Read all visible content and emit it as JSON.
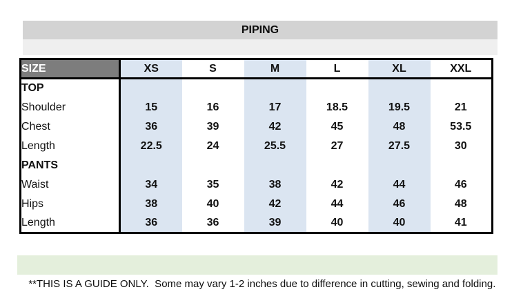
{
  "title": "PIPING",
  "footnote": "**THIS IS A GUIDE ONLY.  Some may vary 1-2 inches due to difference in cutting, sewing and folding.",
  "chart_data": {
    "type": "table",
    "title": "PIPING",
    "corner_header": "SIZE",
    "columns": [
      "XS",
      "S",
      "M",
      "L",
      "XL",
      "XXL"
    ],
    "shaded_columns": [
      "XS",
      "M",
      "XL"
    ],
    "rows": [
      {
        "label": "TOP",
        "is_section": true,
        "values": [
          "",
          "",
          "",
          "",
          "",
          ""
        ]
      },
      {
        "label": "Shoulder",
        "is_section": false,
        "values": [
          "15",
          "16",
          "17",
          "18.5",
          "19.5",
          "21"
        ]
      },
      {
        "label": "Chest",
        "is_section": false,
        "values": [
          "36",
          "39",
          "42",
          "45",
          "48",
          "53.5"
        ]
      },
      {
        "label": "Length",
        "is_section": false,
        "values": [
          "22.5",
          "24",
          "25.5",
          "27",
          "27.5",
          "30"
        ]
      },
      {
        "label": "PANTS",
        "is_section": true,
        "values": [
          "",
          "",
          "",
          "",
          "",
          ""
        ]
      },
      {
        "label": "Waist",
        "is_section": false,
        "values": [
          "34",
          "35",
          "38",
          "42",
          "44",
          "46"
        ]
      },
      {
        "label": "Hips",
        "is_section": false,
        "values": [
          "38",
          "40",
          "42",
          "44",
          "46",
          "48"
        ]
      },
      {
        "label": "Length",
        "is_section": false,
        "values": [
          "36",
          "36",
          "39",
          "40",
          "40",
          "41"
        ]
      }
    ]
  },
  "colors": {
    "title_band": "#d3d3d3",
    "spacer_band": "#efefef",
    "corner_cell": "#7d7d7d",
    "shaded_column": "#dbe5f1",
    "footnote_band": "#e4efdc",
    "border": "#000000"
  }
}
